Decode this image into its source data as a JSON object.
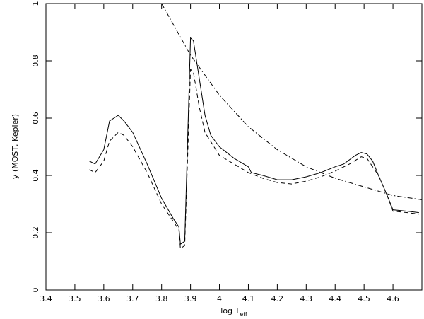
{
  "chart_data": {
    "type": "line",
    "xlabel": {
      "text": "log T",
      "subscript": "eff"
    },
    "ylabel": "y (MOST, Kepler)",
    "xlim": [
      3.4,
      4.7
    ],
    "xticks": [
      3.4,
      3.5,
      3.6,
      3.7,
      3.8,
      3.9,
      4,
      4.1,
      4.2,
      4.3,
      4.4,
      4.5,
      4.6
    ],
    "ylim": [
      0,
      1
    ],
    "yticks": [
      0,
      0.2,
      0.4,
      0.6,
      0.8,
      1
    ],
    "series": [
      {
        "color": "#000000",
        "style": "solid",
        "x": [
          3.55,
          3.57,
          3.6,
          3.62,
          3.65,
          3.67,
          3.7,
          3.75,
          3.8,
          3.84,
          3.86,
          3.865,
          3.88,
          3.9,
          3.91,
          3.93,
          3.95,
          3.97,
          4.0,
          4.05,
          4.1,
          4.11,
          4.15,
          4.2,
          4.25,
          4.3,
          4.35,
          4.4,
          4.43,
          4.47,
          4.49,
          4.51,
          4.53,
          4.55,
          4.58,
          4.6,
          4.65,
          4.69
        ],
        "values": [
          0.45,
          0.44,
          0.49,
          0.59,
          0.61,
          0.59,
          0.55,
          0.44,
          0.32,
          0.25,
          0.22,
          0.16,
          0.17,
          0.88,
          0.87,
          0.74,
          0.61,
          0.54,
          0.5,
          0.46,
          0.43,
          0.41,
          0.4,
          0.385,
          0.385,
          0.395,
          0.41,
          0.43,
          0.44,
          0.47,
          0.48,
          0.475,
          0.45,
          0.4,
          0.33,
          0.28,
          0.275,
          0.27
        ]
      },
      {
        "color": "#000000",
        "style": "dashed",
        "x": [
          3.55,
          3.57,
          3.6,
          3.62,
          3.65,
          3.67,
          3.7,
          3.75,
          3.8,
          3.84,
          3.86,
          3.865,
          3.88,
          3.9,
          3.91,
          3.93,
          3.95,
          4.0,
          4.05,
          4.1,
          4.15,
          4.2,
          4.25,
          4.3,
          4.35,
          4.4,
          4.45,
          4.49,
          4.51,
          4.55,
          4.58,
          4.6,
          4.65,
          4.69
        ],
        "values": [
          0.42,
          0.41,
          0.45,
          0.52,
          0.55,
          0.54,
          0.5,
          0.41,
          0.3,
          0.24,
          0.21,
          0.145,
          0.155,
          0.77,
          0.76,
          0.64,
          0.55,
          0.47,
          0.44,
          0.41,
          0.39,
          0.375,
          0.37,
          0.38,
          0.395,
          0.415,
          0.44,
          0.465,
          0.46,
          0.4,
          0.33,
          0.275,
          0.27,
          0.265
        ]
      },
      {
        "color": "#000000",
        "style": "dashdot",
        "x": [
          3.8,
          3.9,
          4.0,
          4.1,
          4.2,
          4.3,
          4.4,
          4.5,
          4.6,
          4.7
        ],
        "values": [
          1.0,
          0.82,
          0.68,
          0.57,
          0.49,
          0.43,
          0.39,
          0.36,
          0.33,
          0.315
        ]
      }
    ]
  }
}
